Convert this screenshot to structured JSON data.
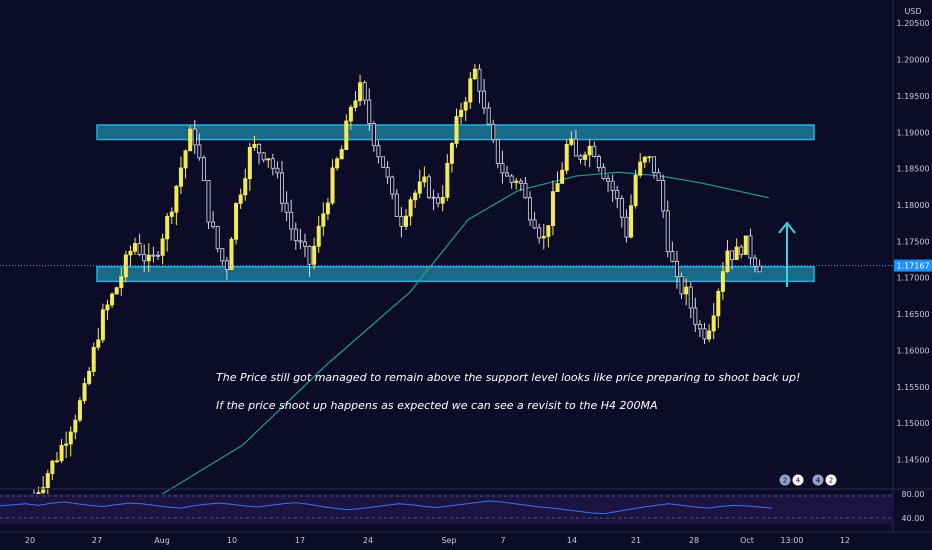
{
  "chart_data": {
    "type": "candlestick",
    "currency": "USD",
    "price_axis": {
      "min": 1.14,
      "max": 1.21,
      "ticks": [
        "1.20500",
        "1.20000",
        "1.19500",
        "1.19000",
        "1.18500",
        "1.18000",
        "1.17500",
        "1.17000",
        "1.16500",
        "1.16000",
        "1.15500",
        "1.15000",
        "1.14500"
      ]
    },
    "current_price_label": "1.17167",
    "current_price": 1.17167,
    "x_labels": [
      "20",
      "27",
      "Aug",
      "10",
      "17",
      "24",
      "Sep",
      "7",
      "14",
      "21",
      "28",
      "Oct",
      "13:00",
      "12"
    ],
    "resistance_zone": [
      1.189,
      1.191
    ],
    "support_zone": [
      1.1695,
      1.1715
    ],
    "ma_label": "H4 200MA",
    "price_path": [
      [
        20,
        1.14
      ],
      [
        23,
        1.146
      ],
      [
        26,
        1.154
      ],
      [
        28,
        1.164
      ],
      [
        30,
        1.169
      ],
      [
        32,
        1.175
      ],
      [
        34,
        1.1715
      ],
      [
        36,
        1.178
      ],
      [
        38,
        1.187
      ],
      [
        39,
        1.1905
      ],
      [
        40,
        1.185
      ],
      [
        41,
        1.178
      ],
      [
        42,
        1.174
      ],
      [
        43,
        1.171
      ],
      [
        44,
        1.179
      ],
      [
        46,
        1.188
      ],
      [
        48,
        1.187
      ],
      [
        49,
        1.184
      ],
      [
        50,
        1.18
      ],
      [
        51,
        1.176
      ],
      [
        53,
        1.172
      ],
      [
        54,
        1.176
      ],
      [
        56,
        1.185
      ],
      [
        57,
        1.188
      ],
      [
        58,
        1.194
      ],
      [
        59,
        1.196
      ],
      [
        60,
        1.192
      ],
      [
        61,
        1.188
      ],
      [
        62,
        1.185
      ],
      [
        63,
        1.18
      ],
      [
        64,
        1.178
      ],
      [
        65,
        1.181
      ],
      [
        66,
        1.182
      ],
      [
        67,
        1.183
      ],
      [
        68,
        1.18
      ],
      [
        69,
        1.182
      ],
      [
        70,
        1.188
      ],
      [
        71,
        1.193
      ],
      [
        72,
        1.196
      ],
      [
        73,
        1.199
      ],
      [
        74,
        1.192
      ],
      [
        75,
        1.188
      ],
      [
        76,
        1.185
      ],
      [
        77,
        1.183
      ],
      [
        78,
        1.184
      ],
      [
        79,
        1.18
      ],
      [
        80,
        1.178
      ],
      [
        81,
        1.175
      ],
      [
        82,
        1.18
      ],
      [
        83,
        1.184
      ],
      [
        84,
        1.189
      ],
      [
        85,
        1.186
      ],
      [
        86,
        1.188
      ],
      [
        87,
        1.188
      ],
      [
        88,
        1.185
      ],
      [
        89,
        1.183
      ],
      [
        90,
        1.18
      ],
      [
        91,
        1.176
      ],
      [
        92,
        1.184
      ],
      [
        93,
        1.186
      ],
      [
        94,
        1.186
      ],
      [
        95,
        1.182
      ],
      [
        96,
        1.174
      ],
      [
        97,
        1.169
      ],
      [
        98,
        1.168
      ],
      [
        99,
        1.165
      ],
      [
        100,
        1.162
      ],
      [
        101,
        1.164
      ],
      [
        102,
        1.169
      ],
      [
        103,
        1.174
      ],
      [
        104,
        1.173
      ],
      [
        105,
        1.175
      ],
      [
        106,
        1.173
      ],
      [
        107,
        1.1717
      ]
    ],
    "ma_path": [
      [
        35,
        1.14
      ],
      [
        45,
        1.147
      ],
      [
        55,
        1.158
      ],
      [
        65,
        1.168
      ],
      [
        72,
        1.178
      ],
      [
        78,
        1.182
      ],
      [
        85,
        1.184
      ],
      [
        90,
        1.1845
      ],
      [
        95,
        1.184
      ],
      [
        100,
        1.183
      ],
      [
        108,
        1.181
      ]
    ],
    "rsi": {
      "levels": [
        "80.00",
        "40.00"
      ],
      "values": [
        62,
        64,
        66,
        63,
        67,
        69,
        66,
        63,
        61,
        64,
        67,
        66,
        63,
        60,
        58,
        62,
        65,
        67,
        65,
        62,
        60,
        63,
        66,
        68,
        65,
        61,
        58,
        55,
        57,
        60,
        63,
        66,
        64,
        61,
        59,
        62,
        65,
        68,
        71,
        69,
        66,
        63,
        60,
        58,
        55,
        52,
        49,
        48,
        52,
        56,
        60,
        63,
        66,
        63,
        60,
        58,
        61,
        63,
        62,
        60,
        58
      ]
    },
    "badges": [
      "2",
      "4",
      "4",
      "2"
    ]
  },
  "annotations": {
    "line1": "The Price still got managed to remain above the support level looks like price preparing to shoot back up!",
    "line2": "If the price shoot up happens as expected we can see a revisit to the H4 200MA"
  }
}
